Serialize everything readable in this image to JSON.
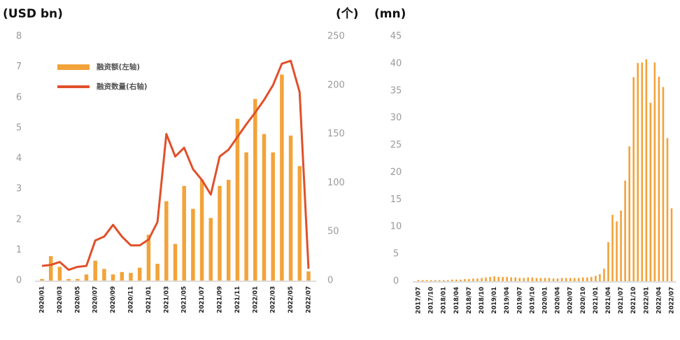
{
  "chart_data": [
    {
      "type": "bar",
      "ylabel": "(USD bn)",
      "y2label": "(个)",
      "categories": [
        "2020/01",
        null,
        "2020/03",
        null,
        "2020/05",
        null,
        "2020/07",
        null,
        "2020/09",
        null,
        "2020/11",
        null,
        "2021/01",
        null,
        "2021/03",
        null,
        "2021/05",
        null,
        "2021/07",
        null,
        "2021/09",
        null,
        "2021/11",
        null,
        "2022/01",
        null,
        "2022/03",
        null,
        "2022/05",
        null,
        "2022/07"
      ],
      "series": [
        {
          "name": "融资额(左轴)",
          "type": "bar",
          "color": "#f2a33a",
          "values": [
            0.05,
            0.8,
            0.45,
            0.05,
            0.05,
            0.2,
            0.65,
            0.38,
            0.2,
            0.28,
            0.25,
            0.42,
            1.5,
            0.55,
            2.6,
            1.2,
            3.1,
            2.35,
            3.3,
            2.05,
            3.1,
            3.3,
            5.3,
            4.2,
            5.95,
            4.8,
            4.2,
            6.75,
            4.75,
            3.75,
            0.3
          ]
        },
        {
          "name": "融资数量(右轴)",
          "type": "line",
          "axis": "y2",
          "color": "#e0502a",
          "values": [
            15,
            16,
            19,
            11,
            14,
            15,
            41,
            45,
            57,
            45,
            36,
            36,
            42,
            60,
            150,
            127,
            136,
            114,
            103,
            88,
            127,
            134,
            147,
            160,
            172,
            185,
            200,
            222,
            225,
            193,
            12
          ]
        }
      ],
      "ylim": [
        0,
        8
      ],
      "yticks": [
        0,
        1,
        2,
        3,
        4,
        5,
        6,
        7,
        8
      ],
      "y2lim": [
        0,
        250
      ],
      "y2ticks": [
        0,
        50,
        100,
        150,
        200,
        250
      ],
      "legend": "upper left",
      "grid": false
    },
    {
      "type": "bar",
      "ylabel": "(mn)",
      "color": "#f2a33a",
      "categories": [
        "2017/07",
        null,
        null,
        "2017/10",
        null,
        null,
        "2018/01",
        null,
        null,
        "2018/04",
        null,
        null,
        "2018/07",
        null,
        null,
        "2018/10",
        null,
        null,
        "2019/01",
        null,
        null,
        "2019/04",
        null,
        null,
        "2019/07",
        null,
        null,
        "2019/10",
        null,
        null,
        "2020/01",
        null,
        null,
        "2020/04",
        null,
        null,
        "2020/07",
        null,
        null,
        "2020/10",
        null,
        null,
        "2021/01",
        null,
        null,
        "2021/04",
        null,
        null,
        "2021/07",
        null,
        null,
        "2021/10",
        null,
        null,
        "2022/01",
        null,
        null,
        "2022/04",
        null,
        null,
        "2022/07"
      ],
      "values": [
        0.2,
        0.2,
        0.2,
        0.2,
        0.2,
        0.2,
        0.2,
        0.2,
        0.3,
        0.3,
        0.3,
        0.4,
        0.4,
        0.5,
        0.5,
        0.6,
        0.7,
        0.8,
        0.9,
        0.8,
        0.8,
        0.8,
        0.7,
        0.7,
        0.6,
        0.6,
        0.7,
        0.7,
        0.6,
        0.6,
        0.6,
        0.6,
        0.5,
        0.5,
        0.6,
        0.6,
        0.6,
        0.6,
        0.6,
        0.7,
        0.7,
        0.8,
        1.0,
        1.3,
        2.3,
        7.2,
        12.2,
        11,
        13,
        18.5,
        24.8,
        37.5,
        40.1,
        40.2,
        40.8,
        32.8,
        40.2,
        37.6,
        35.7,
        26.3,
        13.4
      ],
      "ylim": [
        0,
        45
      ],
      "yticks": [
        0,
        5,
        10,
        15,
        20,
        25,
        30,
        35,
        40,
        45
      ],
      "grid": false
    }
  ]
}
